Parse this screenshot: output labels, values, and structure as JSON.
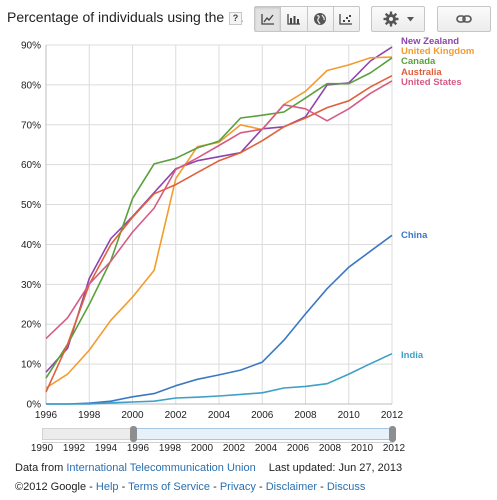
{
  "header": {
    "title": "Percentage of individuals using the I...",
    "help_label": "?"
  },
  "toolbar": {
    "views": [
      "line-chart-icon",
      "bar-chart-icon",
      "globe-icon",
      "scatter-chart-icon"
    ],
    "active_view": 0,
    "settings_icon": "gear-icon",
    "dropdown_icon": "chevron-down-icon",
    "link_icon": "link-icon"
  },
  "chart_data": {
    "type": "line",
    "x": [
      1996,
      1997,
      1998,
      1999,
      2000,
      2001,
      2002,
      2003,
      2004,
      2005,
      2006,
      2007,
      2008,
      2009,
      2010,
      2011,
      2012
    ],
    "x_ticks": [
      "1996",
      "1998",
      "2000",
      "2002",
      "2004",
      "2006",
      "2008",
      "2010",
      "2012"
    ],
    "y_ticks": [
      "0%",
      "10%",
      "20%",
      "30%",
      "40%",
      "50%",
      "60%",
      "70%",
      "80%",
      "90%"
    ],
    "xlim": [
      1996,
      2012
    ],
    "ylim": [
      0,
      90
    ],
    "grid": true,
    "series": [
      {
        "name": "New Zealand",
        "color": "#8e44ad",
        "values": [
          8.0,
          14.0,
          31.5,
          41.5,
          47.0,
          53.0,
          59.0,
          61.0,
          62.0,
          63.0,
          69.0,
          69.5,
          72.0,
          80.0,
          80.5,
          86.0,
          89.5
        ]
      },
      {
        "name": "United Kingdom",
        "color": "#f39c2e",
        "values": [
          4.0,
          7.5,
          13.5,
          21.0,
          26.8,
          33.5,
          56.5,
          64.5,
          65.6,
          70.0,
          68.8,
          75.1,
          78.4,
          83.6,
          85.0,
          86.8,
          87.0
        ]
      },
      {
        "name": "Canada",
        "color": "#5aa03c",
        "values": [
          6.5,
          15.0,
          25.0,
          36.0,
          51.5,
          60.2,
          61.6,
          64.2,
          65.9,
          71.7,
          72.4,
          73.2,
          76.7,
          80.3,
          80.3,
          83.0,
          86.8
        ]
      },
      {
        "name": "Australia",
        "color": "#e0603c",
        "values": [
          3.0,
          15.0,
          30.0,
          40.0,
          46.8,
          52.7,
          55.0,
          58.0,
          61.0,
          63.0,
          66.0,
          69.5,
          71.7,
          74.3,
          76.0,
          79.5,
          82.3
        ]
      },
      {
        "name": "United States",
        "color": "#d65c83",
        "values": [
          16.4,
          21.6,
          30.1,
          35.8,
          43.1,
          49.1,
          58.8,
          61.7,
          64.8,
          68.0,
          68.9,
          75.0,
          74.0,
          71.0,
          74.0,
          77.9,
          81.0
        ]
      },
      {
        "name": "China",
        "color": "#3b78c4",
        "values": [
          0.0,
          0.0,
          0.2,
          0.7,
          1.8,
          2.6,
          4.6,
          6.2,
          7.3,
          8.5,
          10.5,
          16.0,
          22.6,
          28.9,
          34.3,
          38.3,
          42.3
        ]
      },
      {
        "name": "India",
        "color": "#3ea0c8",
        "values": [
          0.0,
          0.0,
          0.0,
          0.3,
          0.5,
          0.7,
          1.5,
          1.7,
          2.0,
          2.4,
          2.8,
          4.0,
          4.4,
          5.1,
          7.5,
          10.1,
          12.6
        ]
      }
    ]
  },
  "range_slider": {
    "ticks": [
      "1990",
      "1992",
      "1994",
      "1996",
      "1998",
      "2000",
      "2002",
      "2004",
      "2006",
      "2008",
      "2010",
      "2012"
    ],
    "range": [
      "1996",
      "2012"
    ]
  },
  "footer": {
    "data_from_prefix": "Data from",
    "source_link": "International Telecommunication Union",
    "last_updated": "Last updated: Jun 27, 2013",
    "copyright": "©2012 Google",
    "sep": "-",
    "links": [
      "Help",
      "Terms of Service",
      "Privacy",
      "Disclaimer",
      "Discuss"
    ]
  }
}
